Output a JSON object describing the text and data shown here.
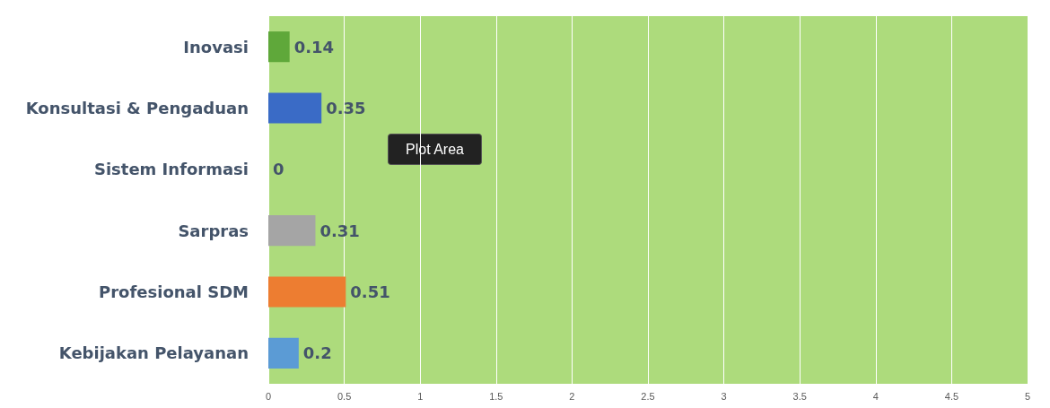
{
  "chart_data": {
    "type": "bar",
    "orientation": "horizontal",
    "categories": [
      "Inovasi",
      "Konsultasi & Pengaduan",
      "Sistem Informasi",
      "Sarpras",
      "Profesional SDM",
      "Kebijakan Pelayanan"
    ],
    "values": [
      0.14,
      0.35,
      0,
      0.31,
      0.51,
      0.2
    ],
    "colors": [
      "#5fa83a",
      "#3a6bc6",
      "#4472c4",
      "#a5a5a5",
      "#ed7d31",
      "#5b9bd5"
    ],
    "xlim": [
      0,
      5
    ],
    "xticks": [
      0,
      0.5,
      1,
      1.5,
      2,
      2.5,
      3,
      3.5,
      4,
      4.5,
      5
    ],
    "grid": "x",
    "data_labels": true,
    "annotations": [
      "Plot Area"
    ]
  }
}
